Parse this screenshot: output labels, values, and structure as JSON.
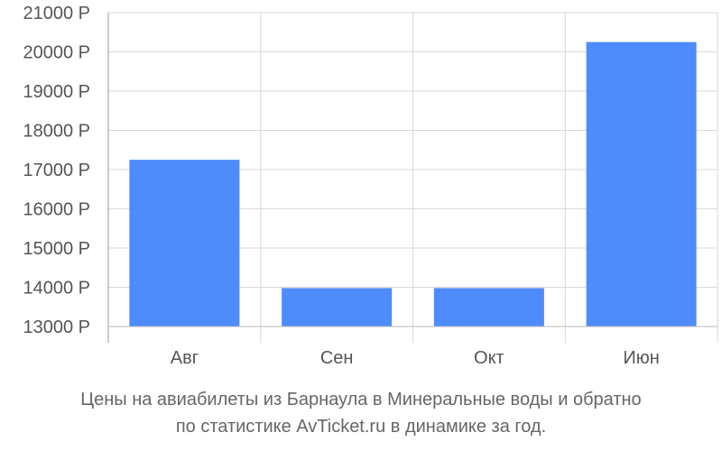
{
  "chart_data": {
    "type": "bar",
    "categories": [
      "Авг",
      "Сен",
      "Окт",
      "Июн"
    ],
    "values": [
      17250,
      13980,
      13980,
      20250
    ],
    "ylim": [
      13000,
      21000
    ],
    "yticks": [
      13000,
      14000,
      15000,
      16000,
      17000,
      18000,
      19000,
      20000,
      21000
    ],
    "ytick_suffix": " Р",
    "grid": true,
    "bar_color": "#4e8bfb"
  },
  "caption": {
    "line1": "Цены на авиабилеты из Барнаула в Минеральные воды и обратно",
    "line2": "по статистике AvTicket.ru в динамике за год."
  }
}
